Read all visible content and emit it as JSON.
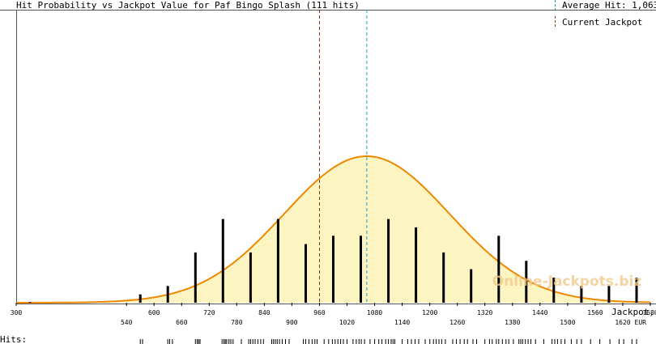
{
  "chart_data": {
    "type": "bar",
    "title": "Hit Probability vs Jackpot Value for Paf Bingo Splash (111 hits)",
    "xlabel": "Jackpot,",
    "xunit": "EUR",
    "xlim": [
      300,
      1680
    ],
    "x_ticks_upper": [
      300,
      600,
      720,
      840,
      960,
      1080,
      1200,
      1320,
      1440,
      1560,
      1680
    ],
    "x_ticks_lower": [
      540,
      660,
      780,
      900,
      1020,
      1140,
      1260,
      1380,
      1500,
      1620
    ],
    "bars": {
      "x": [
        330,
        570,
        630,
        690,
        750,
        810,
        870,
        930,
        990,
        1050,
        1110,
        1170,
        1230,
        1290,
        1350,
        1410,
        1470,
        1530,
        1590,
        1650
      ],
      "values": [
        0.2,
        2,
        4,
        12,
        20,
        12,
        20,
        14,
        16,
        16,
        20,
        18,
        12,
        8,
        16,
        10,
        6,
        4,
        4,
        6
      ]
    },
    "bell_curve": {
      "mean": 1063,
      "sd": 180,
      "peak": 35,
      "color": "#ee8800",
      "fill": "#fcf5c2"
    },
    "ylim": [
      0,
      70
    ],
    "average_hit": {
      "label": "Average Hit: 1,063",
      "value": 1063,
      "color": "#2299cc"
    },
    "current_jackpot": {
      "label": "Current Jackpot",
      "value": 960,
      "color": "#993311"
    },
    "hits_label": "Hits:",
    "hits": [
      570,
      575,
      630,
      634,
      640,
      690,
      694,
      697,
      700,
      748,
      752,
      755,
      758,
      763,
      767,
      772,
      790,
      806,
      810,
      815,
      820,
      826,
      832,
      838,
      856,
      860,
      864,
      868,
      873,
      879,
      886,
      894,
      925,
      930,
      937,
      944,
      950,
      955,
      970,
      980,
      988,
      994,
      1000,
      1006,
      1012,
      1020,
      1033,
      1040,
      1046,
      1051,
      1058,
      1070,
      1080,
      1089,
      1096,
      1104,
      1110,
      1116,
      1120,
      1124,
      1140,
      1152,
      1160,
      1168,
      1176,
      1190,
      1200,
      1208,
      1214,
      1220,
      1226,
      1234,
      1250,
      1258,
      1266,
      1275,
      1282,
      1294,
      1302,
      1320,
      1330,
      1336,
      1345,
      1350,
      1358,
      1366,
      1372,
      1382,
      1394,
      1398,
      1402,
      1408,
      1414,
      1420,
      1430,
      1448,
      1466,
      1472,
      1478,
      1486,
      1494,
      1508,
      1520,
      1530,
      1550,
      1570,
      1592,
      1612,
      1622,
      1640,
      1650
    ],
    "watermark": "Online-Jackpots.biz"
  }
}
